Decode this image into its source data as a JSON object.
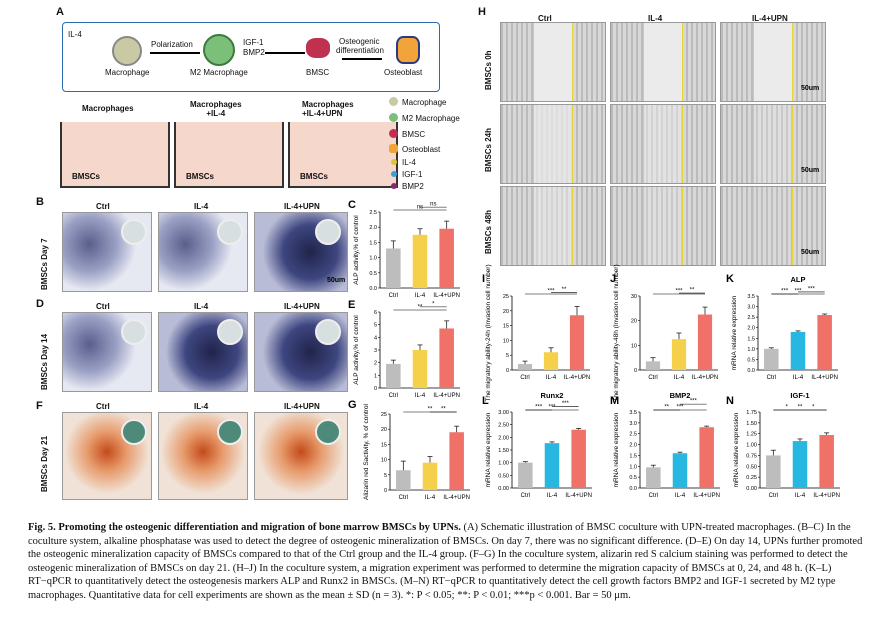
{
  "figure_number": "Fig. 5.",
  "figure_title": "Promoting the osteogenic differentiation and migration of bone marrow BMSCs by UPNs.",
  "caption_body": "(A) Schematic illustration of BMSC coculture with UPN-treated macrophages. (B–C) In the coculture system, alkaline phosphatase was used to detect the degree of osteogenic mineralization of BMSCs. On day 7, there was no significant difference. (D–E) On day 14, UPNs further promoted the osteogenic mineralization capacity of BMSCs compared to that of the Ctrl group and the IL-4 group. (F–G) In the coculture system, alizarin red S calcium staining was performed to detect the osteogenic mineralization of BMSCs on day 21. (H–J) In the coculture system, a migration experiment was performed to determine the migration capacity of BMSCs at 0, 24, and 48 h. (K–L) RT−qPCR to quantitatively detect the osteogenesis markers ALP and Runx2 in BMSCs. (M–N) RT−qPCR to quantitatively detect the cell growth factors BMP2 and IGF-1 secreted by M2 type macrophages. Quantitative data for cell experiments are shown as the mean ± SD (n = 3). *: P < 0.05; **: P < 0.01; ***p < 0.001. Bar = 50 μm.",
  "panel_letters": {
    "A": "A",
    "B": "B",
    "C": "C",
    "D": "D",
    "E": "E",
    "F": "F",
    "G": "G",
    "H": "H",
    "I": "I",
    "J": "J",
    "K": "K",
    "L": "L",
    "M": "M",
    "N": "N"
  },
  "schematic": {
    "il4": "IL-4",
    "polarization": "Polarization",
    "igf1": "IGF-1",
    "bmp2": "BMP2",
    "osteogenic": "Osteogenic",
    "differentiation": "differentiation",
    "macrophage": "Macrophage",
    "m2_macrophage": "M2 Macrophage",
    "bmsc": "BMSC",
    "osteoblast": "Osteoblast",
    "wells": [
      "Macrophages",
      "Macrophages\n+IL-4",
      "Macrophages\n+IL-4+UPN"
    ],
    "bmscs": "BMSCs",
    "legend": [
      "Macrophage",
      "M2 Macrophage",
      "BMSC",
      "Osteoblast",
      "IL-4",
      "IGF-1",
      "BMP2"
    ]
  },
  "groups": [
    "Ctrl",
    "IL-4",
    "IL-4+UPN"
  ],
  "row_labels": {
    "B": "BMSCs  Day 7",
    "D": "BMSCs  Day 14",
    "F": "BMSCs  Day 21"
  },
  "h_row_labels": [
    "BMSCs  0h",
    "BMSCs  24h",
    "BMSCs  48h"
  ],
  "scale_bar": "50um",
  "colors": {
    "ctrl": "#bdbdbd",
    "il4": "#f5d04a",
    "upn": "#f07167",
    "ctrl2": "#bdbdbd",
    "il4b": "#27b7e0",
    "upnb": "#f07167"
  },
  "chart_data": [
    {
      "id": "C",
      "type": "bar",
      "categories": [
        "Ctrl",
        "IL-4",
        "IL-4+UPN"
      ],
      "values": [
        1.3,
        1.75,
        1.95
      ],
      "errors": [
        0.25,
        0.2,
        0.25
      ],
      "ylabel": "ALP activity,% of control",
      "ylim": [
        0,
        2.5
      ],
      "yticks": [
        "0.0",
        "0.5",
        "1.0",
        "1.5",
        "2.0",
        "2.5"
      ],
      "sig": [
        [
          "ns",
          0,
          2
        ],
        [
          "ns",
          1,
          2
        ]
      ],
      "palette": "warm"
    },
    {
      "id": "E",
      "type": "bar",
      "categories": [
        "Ctrl",
        "IL-4",
        "IL-4+UPN"
      ],
      "values": [
        1.9,
        3.0,
        4.7
      ],
      "errors": [
        0.3,
        0.4,
        0.6
      ],
      "ylabel": "ALP activity,% of control",
      "ylim": [
        0,
        6
      ],
      "yticks": [
        "0",
        "1",
        "2",
        "3",
        "4",
        "5",
        "6"
      ],
      "sig": [
        [
          "**",
          0,
          2
        ],
        [
          "*",
          1,
          2
        ]
      ],
      "palette": "warm"
    },
    {
      "id": "G",
      "type": "bar",
      "categories": [
        "Ctrl",
        "IL-4",
        "IL-4+UPN"
      ],
      "values": [
        6.5,
        9.0,
        19.0
      ],
      "errors": [
        3.0,
        2.0,
        2.0
      ],
      "ylabel": "Alizarin red Sactivity, % of control",
      "ylim": [
        0,
        25
      ],
      "yticks": [
        "0",
        "5",
        "10",
        "15",
        "20",
        "25"
      ],
      "sig": [
        [
          "**",
          0,
          2
        ],
        [
          "**",
          1,
          2
        ]
      ],
      "palette": "warm"
    },
    {
      "id": "I",
      "type": "bar",
      "categories": [
        "Ctrl",
        "IL-4",
        "IL-4+UPN"
      ],
      "values": [
        2,
        6,
        18.5
      ],
      "errors": [
        1,
        1.5,
        3
      ],
      "ylabel": "The migratory ability-24h (Invasion cell number)",
      "ylim": [
        0,
        25
      ],
      "yticks": [
        "0",
        "5",
        "10",
        "15",
        "20",
        "25"
      ],
      "sig": [
        [
          "***",
          0,
          2
        ],
        [
          "**",
          1,
          2
        ]
      ],
      "palette": "warm"
    },
    {
      "id": "J",
      "type": "bar",
      "categories": [
        "Ctrl",
        "IL-4",
        "IL-4+UPN"
      ],
      "values": [
        3.5,
        12.5,
        22.5
      ],
      "errors": [
        1.5,
        2.5,
        3
      ],
      "ylabel": "The migratory ability-48h (Invasion cell number)",
      "ylim": [
        0,
        30
      ],
      "yticks": [
        "0",
        "10",
        "20",
        "30"
      ],
      "sig": [
        [
          "***",
          0,
          2
        ],
        [
          "**",
          1,
          2
        ]
      ],
      "palette": "warm"
    },
    {
      "id": "K",
      "type": "bar",
      "title": "ALP",
      "categories": [
        "Ctrl",
        "IL-4",
        "IL-4+UPN"
      ],
      "values": [
        1.0,
        1.8,
        2.6
      ],
      "errors": [
        0.05,
        0.05,
        0.05
      ],
      "ylabel": "mRNA relative expression",
      "ylim": [
        0,
        3.5
      ],
      "yticks": [
        "0.0",
        "0.5",
        "1.0",
        "1.5",
        "2.0",
        "2.5",
        "3.0",
        "3.5"
      ],
      "sig": [
        [
          "***",
          0,
          2
        ],
        [
          "***",
          0,
          1
        ],
        [
          "***",
          1,
          2
        ]
      ],
      "palette": "cool"
    },
    {
      "id": "L",
      "type": "bar",
      "title": "Runx2",
      "categories": [
        "Ctrl",
        "IL-4",
        "IL-4+UPN"
      ],
      "values": [
        1.0,
        1.77,
        2.3
      ],
      "errors": [
        0.04,
        0.05,
        0.05
      ],
      "ylabel": "mRNA relative expression",
      "ylim": [
        0,
        3
      ],
      "yticks": [
        "0.00",
        "0.50",
        "1.00",
        "1.50",
        "2.00",
        "2.50",
        "3.00"
      ],
      "sig": [
        [
          "***",
          0,
          2
        ],
        [
          "***",
          0,
          1
        ],
        [
          "***",
          1,
          2
        ]
      ],
      "palette": "cool"
    },
    {
      "id": "M",
      "type": "bar",
      "title": "BMP2",
      "categories": [
        "Ctrl",
        "IL-4",
        "IL-4+UPN"
      ],
      "values": [
        0.95,
        1.6,
        2.8
      ],
      "errors": [
        0.1,
        0.05,
        0.05
      ],
      "ylabel": "mRNA relative expression",
      "ylim": [
        0,
        3.5
      ],
      "yticks": [
        "0.0",
        "0.5",
        "1.0",
        "1.5",
        "2.0",
        "2.5",
        "3.0",
        "3.5"
      ],
      "sig": [
        [
          "***",
          0,
          2
        ],
        [
          "**",
          0,
          1
        ],
        [
          "***",
          1,
          2
        ]
      ],
      "palette": "cool"
    },
    {
      "id": "N",
      "type": "bar",
      "title": "IGF-1",
      "categories": [
        "Ctrl",
        "IL-4",
        "IL-4+UPN"
      ],
      "values": [
        0.75,
        1.08,
        1.22
      ],
      "errors": [
        0.12,
        0.05,
        0.05
      ],
      "ylabel": "mRNA relative expression",
      "ylim": [
        0,
        1.75
      ],
      "yticks": [
        "0.00",
        "0.25",
        "0.50",
        "0.75",
        "1.00",
        "1.25",
        "1.50",
        "1.75"
      ],
      "sig": [
        [
          "**",
          0,
          2
        ],
        [
          "*",
          0,
          1
        ],
        [
          "*",
          1,
          2
        ]
      ],
      "palette": "cool"
    }
  ]
}
